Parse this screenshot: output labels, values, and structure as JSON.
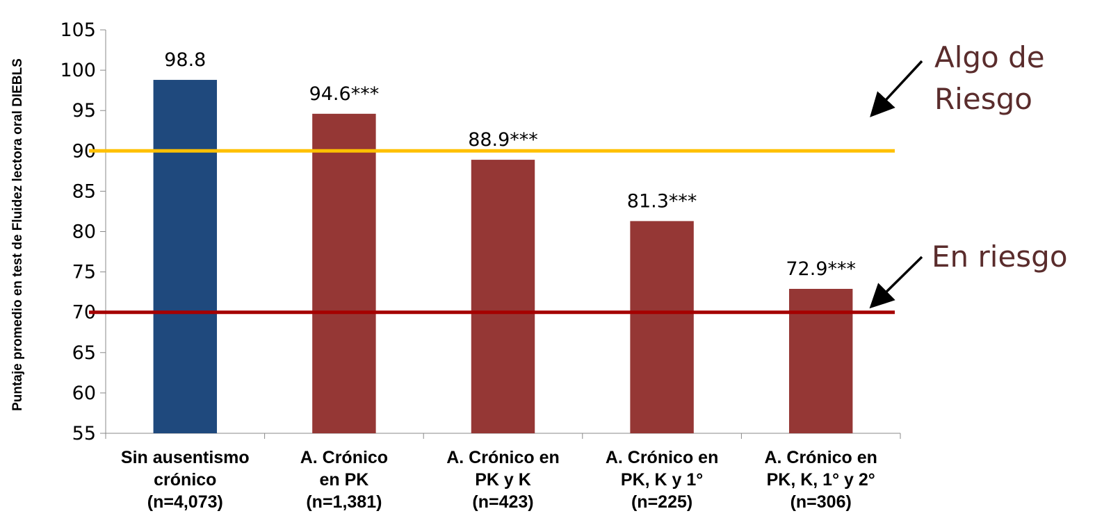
{
  "chart_data": {
    "type": "bar",
    "title": "",
    "ylabel": "Puntaje promedio en test de Fluidez lectora oral DIEBLS",
    "xlabel": "",
    "ylim": [
      55,
      105
    ],
    "yticks": [
      55,
      60,
      65,
      70,
      75,
      80,
      85,
      90,
      95,
      100,
      105
    ],
    "grid": false,
    "categories": [
      [
        "Sin ausentismo",
        "crónico",
        "(n=4,073)"
      ],
      [
        "A. Crónico",
        "en PK",
        "(n=1,381)"
      ],
      [
        "A. Crónico en",
        "PK y K",
        "(n=423)"
      ],
      [
        "A. Crónico en",
        "PK, K y 1°",
        "(n=225)"
      ],
      [
        "A. Crónico en",
        "PK, K, 1° y 2°",
        "(n=306)"
      ]
    ],
    "values": [
      98.8,
      94.6,
      88.9,
      81.3,
      72.9
    ],
    "data_labels": [
      "98.8",
      "94.6***",
      "88.9***",
      "81.3***",
      "72.9***"
    ],
    "bar_colors": [
      "#1f497d",
      "#953735",
      "#953735",
      "#953735",
      "#953735"
    ],
    "reference_lines": [
      {
        "value": 90,
        "color": "#ffc000",
        "label": [
          "Algo de",
          "Riesgo"
        ]
      },
      {
        "value": 70,
        "color": "#a50000",
        "label": [
          "En riesgo"
        ]
      }
    ]
  }
}
